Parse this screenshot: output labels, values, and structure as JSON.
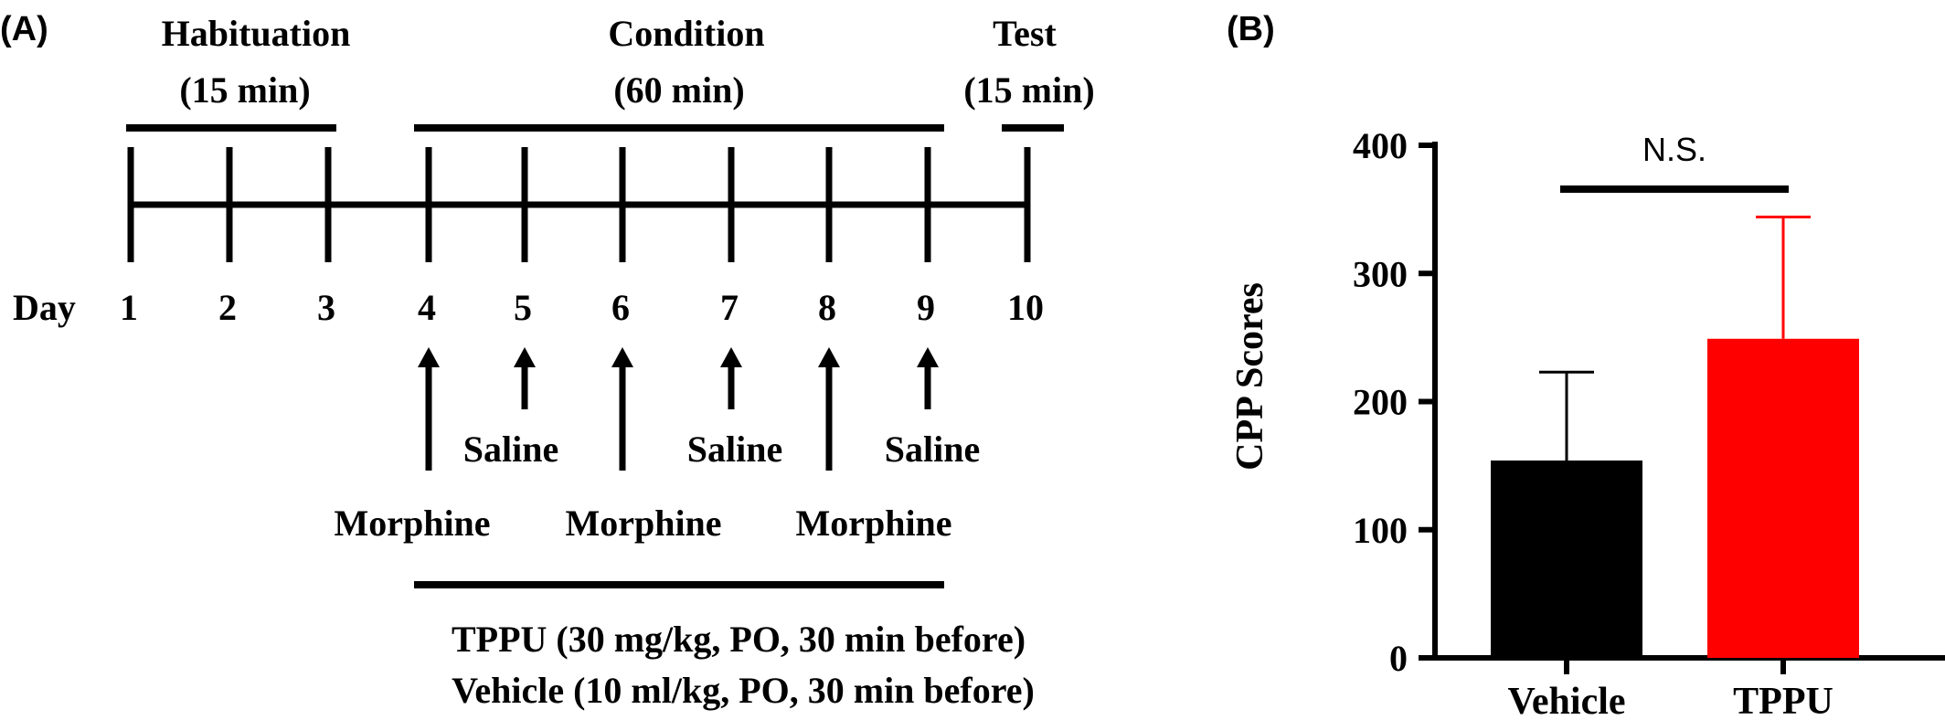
{
  "panel_a": {
    "label": "(A)",
    "phases": [
      {
        "name": "Habituation",
        "duration": "(15 min)"
      },
      {
        "name": "Condition",
        "duration": "(60 min)"
      },
      {
        "name": "Test",
        "duration": "(15 min)"
      }
    ],
    "day_label": "Day",
    "days": [
      "1",
      "2",
      "3",
      "4",
      "5",
      "6",
      "7",
      "8",
      "9",
      "10"
    ],
    "treatments": {
      "saline": "Saline",
      "morphine": "Morphine"
    },
    "saline_days": [
      "5",
      "7",
      "9"
    ],
    "morphine_days": [
      "4",
      "6",
      "8"
    ],
    "drug_lines": [
      "TPPU (30 mg/kg, PO, 30 min before)",
      "Vehicle (10 ml/kg, PO, 30 min before)"
    ]
  },
  "chart_data": {
    "label": "(B)",
    "type": "bar",
    "categories": [
      "Vehicle",
      "TPPU"
    ],
    "values": [
      154,
      249
    ],
    "errors_upper": [
      69,
      95
    ],
    "colors": [
      "#000000",
      "#ff0000"
    ],
    "ylabel": "CPP Scores",
    "xlabel": "",
    "title": "",
    "ylim": [
      0,
      400
    ],
    "yticks": [
      "0",
      "100",
      "200",
      "300",
      "400"
    ],
    "significance": "N.S.",
    "grid": false
  }
}
